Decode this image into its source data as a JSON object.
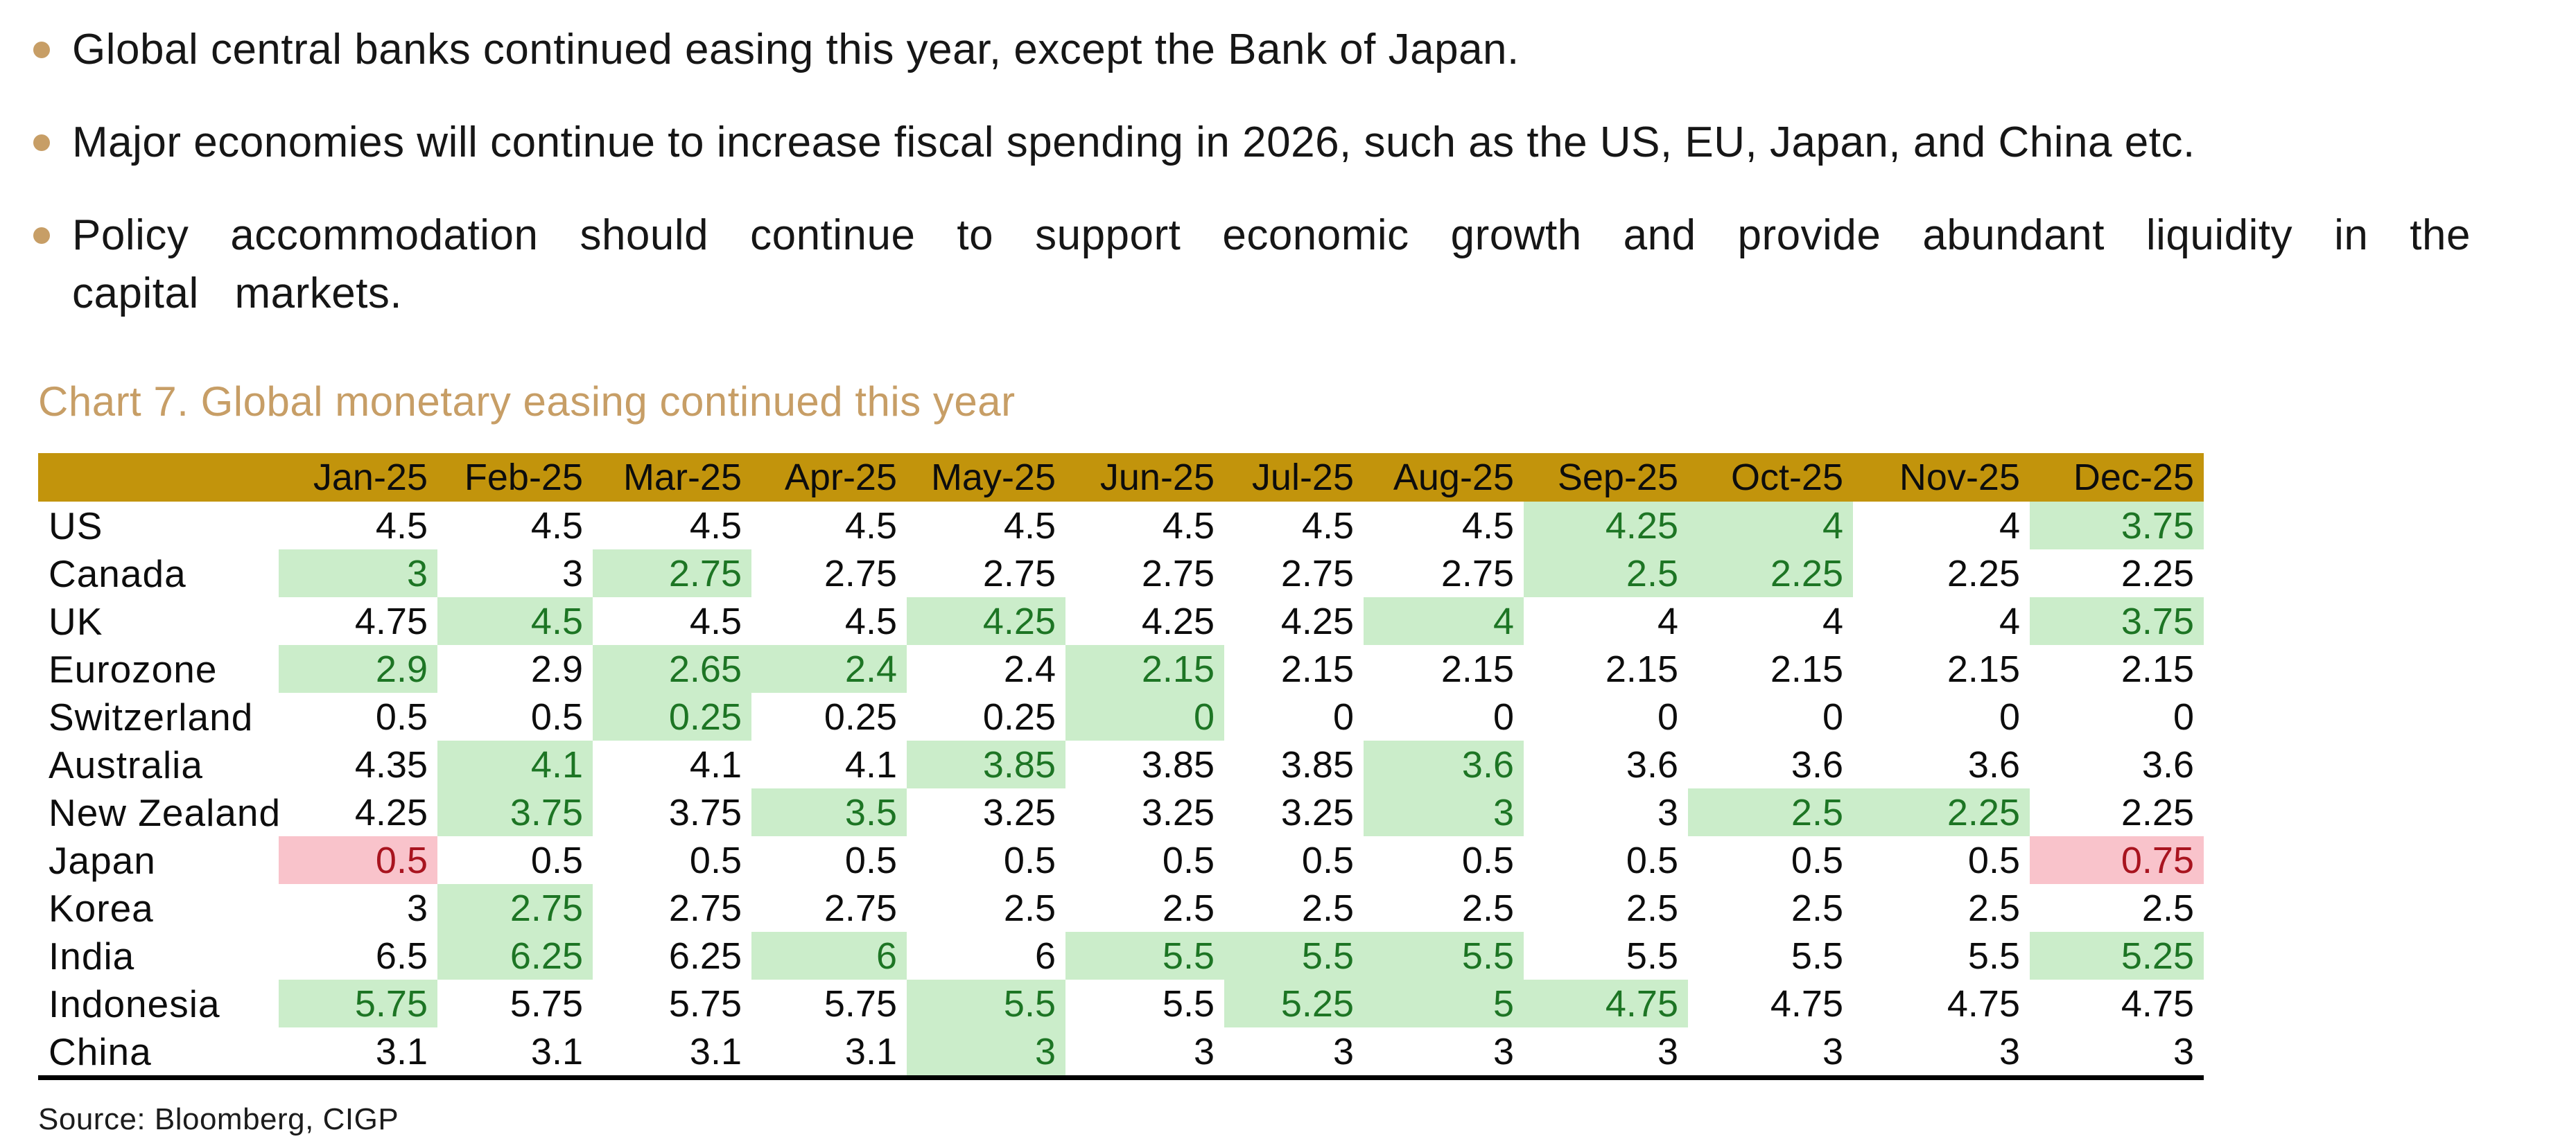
{
  "bullets": [
    "Global central banks continued easing this year, except the Bank of Japan.",
    "Major economies will continue to increase fiscal spending in 2026, such as the US, EU, Japan, and China etc.",
    "Policy accommodation should continue to support economic growth and provide abundant liquidity in the capital markets."
  ],
  "source": "Source: Bloomberg, CIGP",
  "colors": {
    "accent": "#c79e66",
    "header_bg": "#c2940c",
    "green_bg": "#cbedca",
    "green_text": "#1d7524",
    "red_bg": "#f9c3cb",
    "red_text": "#a8141f"
  },
  "chart_data": {
    "type": "table",
    "title": "Chart 7. Global monetary easing continued this year",
    "columns": [
      "Jan-25",
      "Feb-25",
      "Mar-25",
      "Apr-25",
      "May-25",
      "Jun-25",
      "Jul-25",
      "Aug-25",
      "Sep-25",
      "Oct-25",
      "Nov-25",
      "Dec-25"
    ],
    "rows": [
      {
        "label": "US",
        "values": [
          "4.5",
          "4.5",
          "4.5",
          "4.5",
          "4.5",
          "4.5",
          "4.5",
          "4.5",
          "4.25",
          "4",
          "4",
          "3.75"
        ],
        "highlights": [
          "",
          "",
          "",
          "",
          "",
          "",
          "",
          "",
          "green",
          "green",
          "",
          "green"
        ]
      },
      {
        "label": "Canada",
        "values": [
          "3",
          "3",
          "2.75",
          "2.75",
          "2.75",
          "2.75",
          "2.75",
          "2.75",
          "2.5",
          "2.25",
          "2.25",
          "2.25"
        ],
        "highlights": [
          "green",
          "",
          "green",
          "",
          "",
          "",
          "",
          "",
          "green",
          "green",
          "",
          ""
        ]
      },
      {
        "label": "UK",
        "values": [
          "4.75",
          "4.5",
          "4.5",
          "4.5",
          "4.25",
          "4.25",
          "4.25",
          "4",
          "4",
          "4",
          "4",
          "3.75"
        ],
        "highlights": [
          "",
          "green",
          "",
          "",
          "green",
          "",
          "",
          "green",
          "",
          "",
          "",
          "green"
        ]
      },
      {
        "label": "Eurozone",
        "values": [
          "2.9",
          "2.9",
          "2.65",
          "2.4",
          "2.4",
          "2.15",
          "2.15",
          "2.15",
          "2.15",
          "2.15",
          "2.15",
          "2.15"
        ],
        "highlights": [
          "green",
          "",
          "green",
          "green",
          "",
          "green",
          "",
          "",
          "",
          "",
          "",
          ""
        ]
      },
      {
        "label": "Switzerland",
        "values": [
          "0.5",
          "0.5",
          "0.25",
          "0.25",
          "0.25",
          "0",
          "0",
          "0",
          "0",
          "0",
          "0",
          "0"
        ],
        "highlights": [
          "",
          "",
          "green",
          "",
          "",
          "green",
          "",
          "",
          "",
          "",
          "",
          ""
        ]
      },
      {
        "label": "Australia",
        "values": [
          "4.35",
          "4.1",
          "4.1",
          "4.1",
          "3.85",
          "3.85",
          "3.85",
          "3.6",
          "3.6",
          "3.6",
          "3.6",
          "3.6"
        ],
        "highlights": [
          "",
          "green",
          "",
          "",
          "green",
          "",
          "",
          "green",
          "",
          "",
          "",
          ""
        ]
      },
      {
        "label": "New Zealand",
        "values": [
          "4.25",
          "3.75",
          "3.75",
          "3.5",
          "3.25",
          "3.25",
          "3.25",
          "3",
          "3",
          "2.5",
          "2.25",
          "2.25"
        ],
        "highlights": [
          "",
          "green",
          "",
          "green",
          "",
          "",
          "",
          "green",
          "",
          "green",
          "green",
          ""
        ]
      },
      {
        "label": "Japan",
        "values": [
          "0.5",
          "0.5",
          "0.5",
          "0.5",
          "0.5",
          "0.5",
          "0.5",
          "0.5",
          "0.5",
          "0.5",
          "0.5",
          "0.75"
        ],
        "highlights": [
          "red",
          "",
          "",
          "",
          "",
          "",
          "",
          "",
          "",
          "",
          "",
          "red"
        ]
      },
      {
        "label": "Korea",
        "values": [
          "3",
          "2.75",
          "2.75",
          "2.75",
          "2.5",
          "2.5",
          "2.5",
          "2.5",
          "2.5",
          "2.5",
          "2.5",
          "2.5"
        ],
        "highlights": [
          "",
          "green",
          "",
          "",
          "",
          "",
          "",
          "",
          "",
          "",
          "",
          ""
        ]
      },
      {
        "label": "India",
        "values": [
          "6.5",
          "6.25",
          "6.25",
          "6",
          "6",
          "5.5",
          "5.5",
          "5.5",
          "5.5",
          "5.5",
          "5.5",
          "5.25"
        ],
        "highlights": [
          "",
          "green",
          "",
          "green",
          "",
          "green",
          "green",
          "green",
          "",
          "",
          "",
          "green"
        ]
      },
      {
        "label": "Indonesia",
        "values": [
          "5.75",
          "5.75",
          "5.75",
          "5.75",
          "5.5",
          "5.5",
          "5.25",
          "5",
          "4.75",
          "4.75",
          "4.75",
          "4.75"
        ],
        "highlights": [
          "green",
          "",
          "",
          "",
          "green",
          "",
          "green",
          "green",
          "green",
          "",
          "",
          ""
        ]
      },
      {
        "label": "China",
        "values": [
          "3.1",
          "3.1",
          "3.1",
          "3.1",
          "3",
          "3",
          "3",
          "3",
          "3",
          "3",
          "3",
          "3"
        ],
        "highlights": [
          "",
          "",
          "",
          "",
          "green",
          "",
          "",
          "",
          "",
          "",
          "",
          ""
        ]
      }
    ]
  }
}
